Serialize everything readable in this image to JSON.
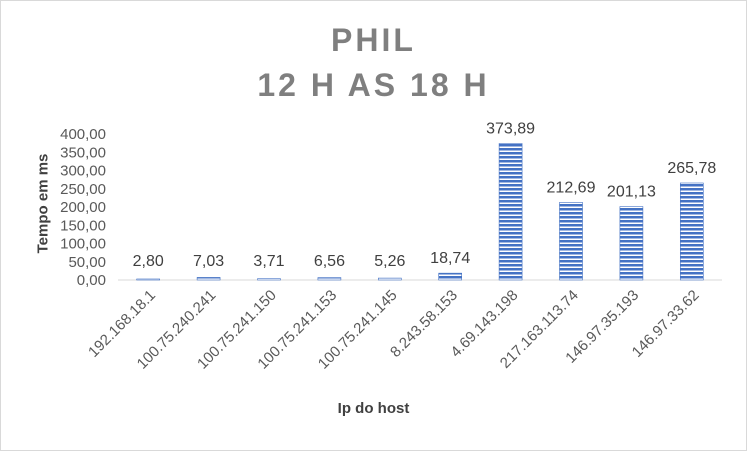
{
  "chart_data": {
    "type": "bar",
    "title": [
      "PHIL",
      "12 H AS 18 H"
    ],
    "xlabel": "Ip do host",
    "ylabel": "Tempo em ms",
    "categories": [
      "192.168.18.1",
      "100.75.240.241",
      "100.75.241.150",
      "100.75.241.153",
      "100.75.241.145",
      "8.243.58.153",
      "4.69.143.198",
      "217.163.113.74",
      "146.97.35.193",
      "146.97.33.62"
    ],
    "values": [
      2.8,
      7.03,
      3.71,
      6.56,
      5.26,
      18.74,
      373.89,
      212.69,
      201.13,
      265.78
    ],
    "data_labels": [
      "2,80",
      "7,03",
      "3,71",
      "6,56",
      "5,26",
      "18,74",
      "373,89",
      "212,69",
      "201,13",
      "265,78"
    ],
    "ylim": [
      0,
      400
    ],
    "yticks": [
      0,
      50,
      100,
      150,
      200,
      250,
      300,
      350,
      400
    ],
    "ytick_labels": [
      "0,00",
      "50,00",
      "100,00",
      "150,00",
      "200,00",
      "250,00",
      "300,00",
      "350,00",
      "400,00"
    ],
    "grid": false,
    "bar_color": "#4472c4",
    "bar_pattern": "horizontal-stripes"
  }
}
